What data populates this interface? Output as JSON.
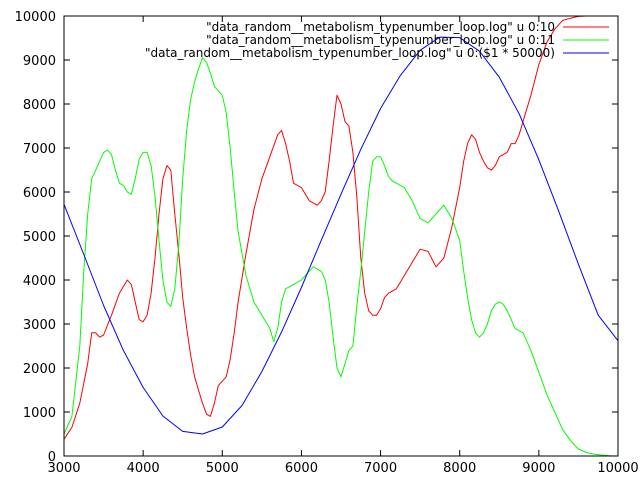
{
  "chart_data": {
    "type": "line",
    "title": "",
    "xlabel": "",
    "ylabel": "",
    "xlim": [
      3000,
      10000
    ],
    "ylim": [
      0,
      10000
    ],
    "x_ticks": [
      3000,
      4000,
      5000,
      6000,
      7000,
      8000,
      9000,
      10000
    ],
    "y_ticks": [
      0,
      1000,
      2000,
      3000,
      4000,
      5000,
      6000,
      7000,
      8000,
      9000,
      10000
    ],
    "x_tick_labels": [
      "3000",
      "4000",
      "5000",
      "6000",
      "7000",
      "8000",
      "9000",
      "10000"
    ],
    "y_tick_labels": [
      "0",
      "1000",
      "2000",
      "3000",
      "4000",
      "5000",
      "6000",
      "7000",
      "8000",
      "9000",
      "10000"
    ],
    "grid": false,
    "legend_position": "top-right",
    "series": [
      {
        "name": "\"data_random__metabolism_typenumber_loop.log\" u 0:10",
        "color": "#ff0000",
        "x": [
          3000,
          3100,
          3200,
          3300,
          3350,
          3400,
          3450,
          3500,
          3600,
          3700,
          3800,
          3850,
          3900,
          3950,
          4000,
          4050,
          4100,
          4150,
          4200,
          4250,
          4300,
          4350,
          4400,
          4450,
          4500,
          4550,
          4600,
          4650,
          4700,
          4750,
          4800,
          4850,
          4900,
          4950,
          5000,
          5050,
          5100,
          5150,
          5200,
          5300,
          5400,
          5500,
          5600,
          5700,
          5750,
          5800,
          5850,
          5900,
          6000,
          6100,
          6200,
          6250,
          6300,
          6350,
          6400,
          6450,
          6500,
          6550,
          6600,
          6650,
          6700,
          6750,
          6800,
          6850,
          6900,
          6950,
          7000,
          7050,
          7100,
          7200,
          7300,
          7400,
          7500,
          7600,
          7700,
          7800,
          7900,
          8000,
          8050,
          8100,
          8150,
          8200,
          8250,
          8300,
          8350,
          8400,
          8450,
          8500,
          8550,
          8600,
          8650,
          8700,
          8750,
          8800,
          8900,
          9000,
          9100,
          9200,
          9300,
          9400,
          9500,
          9600,
          9700,
          9800,
          10000
        ],
        "values": [
          380,
          650,
          1200,
          2100,
          2800,
          2800,
          2700,
          2750,
          3200,
          3700,
          4000,
          3900,
          3500,
          3100,
          3050,
          3200,
          3700,
          4500,
          5500,
          6300,
          6600,
          6500,
          5500,
          4600,
          3600,
          2900,
          2300,
          1800,
          1500,
          1200,
          950,
          900,
          1200,
          1600,
          1700,
          1800,
          2200,
          2800,
          3500,
          4600,
          5600,
          6300,
          6800,
          7300,
          7400,
          7100,
          6700,
          6200,
          6100,
          5800,
          5700,
          5800,
          6000,
          6700,
          7500,
          8200,
          8000,
          7600,
          7500,
          6900,
          5900,
          4500,
          3700,
          3300,
          3200,
          3200,
          3350,
          3600,
          3700,
          3800,
          4100,
          4400,
          4700,
          4650,
          4300,
          4500,
          5200,
          6100,
          6700,
          7100,
          7300,
          7200,
          6900,
          6700,
          6550,
          6500,
          6600,
          6800,
          6850,
          6900,
          7100,
          7100,
          7300,
          7600,
          8200,
          8900,
          9400,
          9700,
          9900,
          9950,
          9990,
          10000,
          10000,
          10000,
          10000
        ]
      },
      {
        "name": "\"data_random__metabolism_typenumber_loop.log\" u 0:11",
        "color": "#00ff00",
        "x": [
          3000,
          3100,
          3200,
          3250,
          3300,
          3350,
          3400,
          3450,
          3500,
          3550,
          3600,
          3650,
          3700,
          3750,
          3800,
          3850,
          3900,
          3950,
          4000,
          4050,
          4100,
          4150,
          4200,
          4250,
          4300,
          4350,
          4400,
          4450,
          4500,
          4550,
          4600,
          4650,
          4700,
          4750,
          4800,
          4850,
          4900,
          4950,
          5000,
          5050,
          5100,
          5150,
          5200,
          5300,
          5400,
          5500,
          5600,
          5650,
          5700,
          5750,
          5800,
          5850,
          5900,
          6000,
          6100,
          6150,
          6200,
          6250,
          6300,
          6350,
          6400,
          6450,
          6500,
          6550,
          6600,
          6650,
          6700,
          6750,
          6800,
          6850,
          6900,
          6950,
          7000,
          7050,
          7100,
          7150,
          7200,
          7300,
          7400,
          7500,
          7600,
          7700,
          7750,
          7800,
          7900,
          8000,
          8050,
          8100,
          8150,
          8200,
          8250,
          8300,
          8350,
          8400,
          8450,
          8500,
          8550,
          8600,
          8650,
          8700,
          8800,
          8900,
          9000,
          9100,
          9200,
          9300,
          9400,
          9500,
          9600,
          9700,
          9800,
          9900,
          10000
        ],
        "values": [
          500,
          900,
          2500,
          4200,
          5500,
          6300,
          6500,
          6700,
          6900,
          6950,
          6850,
          6500,
          6200,
          6150,
          6000,
          5950,
          6300,
          6750,
          6900,
          6900,
          6600,
          5900,
          4900,
          4000,
          3500,
          3400,
          3800,
          4800,
          6300,
          7400,
          8100,
          8500,
          8800,
          9050,
          8950,
          8700,
          8400,
          8300,
          8200,
          7800,
          7000,
          6000,
          5100,
          4100,
          3500,
          3200,
          2900,
          2600,
          2900,
          3500,
          3800,
          3850,
          3900,
          4000,
          4200,
          4300,
          4250,
          4200,
          4000,
          3500,
          2700,
          2000,
          1800,
          2100,
          2400,
          2500,
          3400,
          4200,
          5100,
          6000,
          6700,
          6800,
          6800,
          6600,
          6350,
          6250,
          6200,
          6100,
          5800,
          5400,
          5300,
          5500,
          5600,
          5700,
          5400,
          4900,
          4200,
          3600,
          3100,
          2800,
          2700,
          2800,
          3000,
          3300,
          3450,
          3500,
          3450,
          3300,
          3100,
          2900,
          2800,
          2400,
          1900,
          1400,
          1000,
          600,
          350,
          160,
          80,
          40,
          20,
          5,
          0
        ]
      },
      {
        "name": "\"data_random__metabolism_typenumber_loop.log\" u 0:($1 * 50000)",
        "color": "#0000ff",
        "x": [
          3000,
          3250,
          3500,
          3750,
          4000,
          4250,
          4500,
          4750,
          5000,
          5250,
          5500,
          5750,
          6000,
          6250,
          6500,
          6750,
          7000,
          7250,
          7500,
          7750,
          8000,
          8250,
          8500,
          8750,
          9000,
          9250,
          9500,
          9750,
          10000
        ],
        "values": [
          5720,
          4580,
          3420,
          2400,
          1560,
          910,
          560,
          500,
          660,
          1150,
          1920,
          2820,
          3830,
          4900,
          5950,
          6970,
          7900,
          8650,
          9220,
          9520,
          9510,
          9200,
          8610,
          7780,
          6730,
          5570,
          4360,
          3200,
          2620
        ]
      }
    ]
  }
}
